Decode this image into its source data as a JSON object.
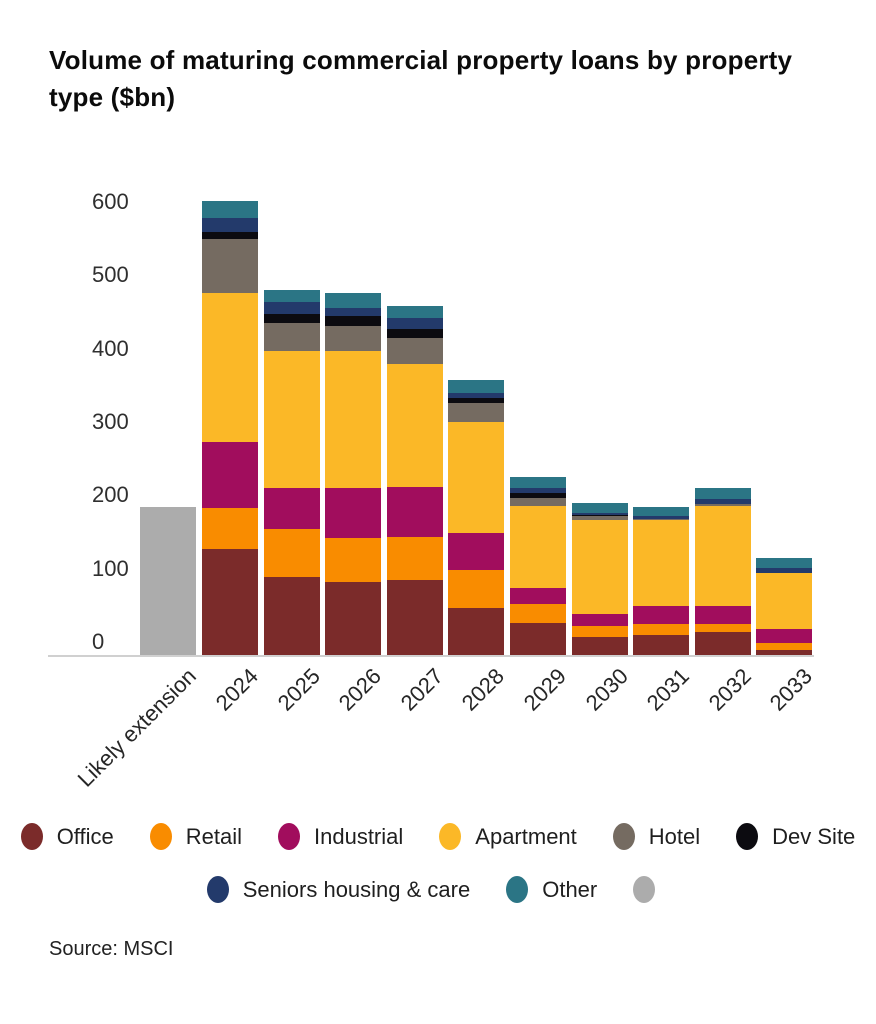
{
  "header": {
    "title": "Volume of maturing commercial property loans by property type ($bn)",
    "title_lines": [
      "Volume of maturing commercial property loans by property",
      "type ($bn)"
    ]
  },
  "source": "Source: MSCI",
  "legend": {
    "rows": [
      [
        {
          "label": "Office",
          "color": "#7B2B2A"
        },
        {
          "label": "Retail",
          "color": "#F98C00"
        },
        {
          "label": "Industrial",
          "color": "#A10D5D"
        },
        {
          "label": "Apartment",
          "color": "#FBB827"
        },
        {
          "label": "Hotel",
          "color": "#756B61"
        },
        {
          "label": "Dev Site",
          "color": "#0C0B10"
        }
      ],
      [
        {
          "label": "Seniors housing & care",
          "color": "#233A6B"
        },
        {
          "label": "Other",
          "color": "#2B7585"
        },
        {
          "label": "",
          "color": "#ACACAC"
        }
      ]
    ]
  },
  "chart_data": {
    "type": "bar",
    "stacked": true,
    "title": "Volume of maturing commercial property loans by property type ($bn)",
    "xlabel": "",
    "ylabel": "",
    "ylim": [
      0,
      600
    ],
    "yticks": [
      0,
      100,
      200,
      300,
      400,
      500,
      600
    ],
    "grid": false,
    "legend_position": "bottom",
    "categories": [
      "Likely extension",
      "2024",
      "2025",
      "2026",
      "2027",
      "2028",
      "2029",
      "2030",
      "2031",
      "2032",
      "2033"
    ],
    "series": [
      {
        "name": "Likely extension",
        "color": "#ACACAC",
        "values": [
          202,
          0,
          0,
          0,
          0,
          0,
          0,
          0,
          0,
          0,
          0
        ]
      },
      {
        "name": "Office",
        "color": "#7B2B2A",
        "values": [
          0,
          145,
          107,
          100,
          102,
          64,
          43,
          24,
          27,
          32,
          7
        ]
      },
      {
        "name": "Retail",
        "color": "#F98C00",
        "values": [
          0,
          55,
          65,
          59,
          59,
          52,
          27,
          16,
          15,
          10,
          9
        ]
      },
      {
        "name": "Industrial",
        "color": "#A10D5D",
        "values": [
          0,
          91,
          55,
          68,
          68,
          50,
          21,
          16,
          25,
          25,
          20
        ]
      },
      {
        "name": "Apartment",
        "color": "#FBB827",
        "values": [
          0,
          202,
          187,
          187,
          168,
          152,
          112,
          128,
          117,
          136,
          76
        ]
      },
      {
        "name": "Hotel",
        "color": "#756B61",
        "values": [
          0,
          74,
          39,
          35,
          35,
          25,
          11,
          5,
          2,
          3,
          0
        ]
      },
      {
        "name": "Dev Site",
        "color": "#0C0B10",
        "values": [
          0,
          10,
          12,
          13,
          13,
          7,
          7,
          2,
          0,
          0,
          0
        ]
      },
      {
        "name": "Seniors housing & care",
        "color": "#233A6B",
        "values": [
          0,
          19,
          16,
          11,
          14,
          7,
          7,
          3,
          3,
          7,
          7
        ]
      },
      {
        "name": "Other",
        "color": "#2B7585",
        "values": [
          0,
          23,
          17,
          20,
          17,
          18,
          15,
          13,
          13,
          14,
          13
        ]
      }
    ],
    "totals": [
      202,
      619,
      498,
      493,
      476,
      375,
      243,
      207,
      202,
      227,
      132
    ]
  }
}
